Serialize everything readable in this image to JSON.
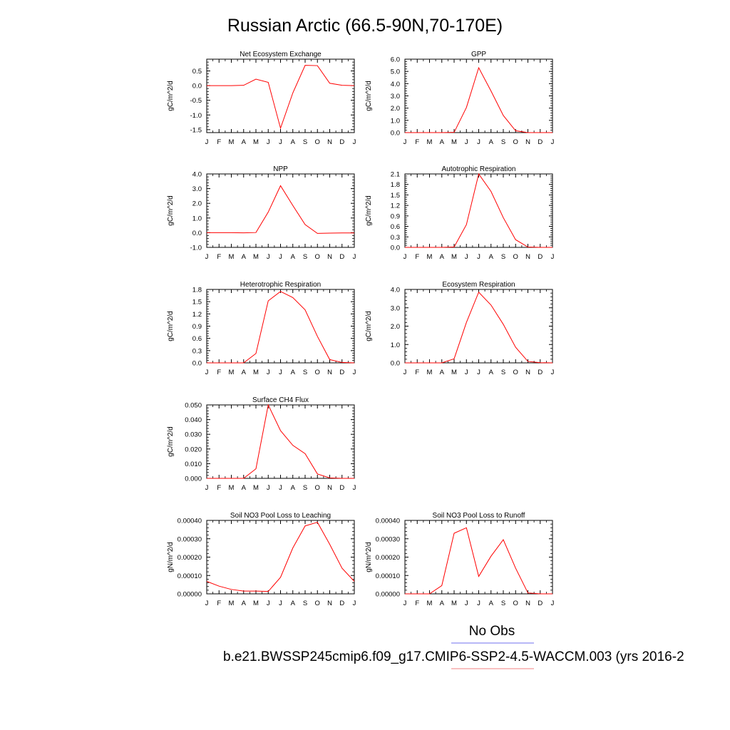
{
  "page": {
    "title": "Russian Arctic (66.5-90N,70-170E)",
    "legend_label": "No Obs",
    "case_label": "b.e21.BWSSP245cmip6.f09_g17.CMIP6-SSP2-4.5-WACCM.003 (yrs 2016-2"
  },
  "colors": {
    "series": "#ff0000",
    "obs_line": "#6f6fef",
    "case_line": "#f08080"
  },
  "chart_data": [
    {
      "type": "line",
      "title": "Net Ecosystem Exchange",
      "xlabel": "",
      "ylabel": "gC/m^2/d",
      "categories": [
        "J",
        "F",
        "M",
        "A",
        "M",
        "J",
        "J",
        "A",
        "S",
        "O",
        "N",
        "D",
        "J"
      ],
      "ylim": [
        -1.6,
        0.9
      ],
      "yticks": [
        -1.5,
        -1.0,
        -0.5,
        0.0,
        0.5
      ],
      "ytick_labels": [
        "-1.5",
        "-1.0",
        "-0.5",
        "0.0",
        "0.5"
      ],
      "values": [
        0.0,
        0.0,
        0.0,
        0.01,
        0.22,
        0.11,
        -1.45,
        -0.25,
        0.69,
        0.68,
        0.08,
        0.01,
        0.0
      ],
      "grid": false
    },
    {
      "type": "line",
      "title": "GPP",
      "xlabel": "",
      "ylabel": "gC/m^2/d",
      "categories": [
        "J",
        "F",
        "M",
        "A",
        "M",
        "J",
        "J",
        "A",
        "S",
        "O",
        "N",
        "D",
        "J"
      ],
      "ylim": [
        0,
        6
      ],
      "yticks": [
        0,
        1,
        2,
        3,
        4,
        5,
        6
      ],
      "ytick_labels": [
        "0.0",
        "1.0",
        "2.0",
        "3.0",
        "4.0",
        "5.0",
        "6.0"
      ],
      "values": [
        0.0,
        0.0,
        0.0,
        0.0,
        0.02,
        2.05,
        5.3,
        3.4,
        1.4,
        0.15,
        0.0,
        0.0,
        0.0
      ],
      "grid": false
    },
    {
      "type": "line",
      "title": "NPP",
      "xlabel": "",
      "ylabel": "gC/m^2/d",
      "categories": [
        "J",
        "F",
        "M",
        "A",
        "M",
        "J",
        "J",
        "A",
        "S",
        "O",
        "N",
        "D",
        "J"
      ],
      "ylim": [
        -1,
        4
      ],
      "yticks": [
        -1,
        0,
        1,
        2,
        3,
        4
      ],
      "ytick_labels": [
        "-1.0",
        "0.0",
        "1.0",
        "2.0",
        "3.0",
        "4.0"
      ],
      "values": [
        0.0,
        0.0,
        0.0,
        -0.01,
        0.01,
        1.4,
        3.2,
        1.85,
        0.55,
        -0.05,
        -0.03,
        -0.02,
        -0.02
      ],
      "grid": false
    },
    {
      "type": "line",
      "title": "Autotrophic Respiration",
      "xlabel": "",
      "ylabel": "gC/m^2/d",
      "categories": [
        "J",
        "F",
        "M",
        "A",
        "M",
        "J",
        "J",
        "A",
        "S",
        "O",
        "N",
        "D",
        "J"
      ],
      "ylim": [
        0,
        2.1
      ],
      "yticks": [
        0,
        0.3,
        0.6,
        0.9,
        1.2,
        1.5,
        1.8,
        2.1
      ],
      "ytick_labels": [
        "0.0",
        "0.3",
        "0.6",
        "0.9",
        "1.2",
        "1.5",
        "1.8",
        "2.1"
      ],
      "values": [
        0.0,
        0.0,
        0.0,
        0.0,
        0.01,
        0.65,
        2.1,
        1.6,
        0.85,
        0.22,
        0.01,
        0.0,
        0.0
      ],
      "grid": false
    },
    {
      "type": "line",
      "title": "Heterotrophic Respiration",
      "xlabel": "",
      "ylabel": "gC/m^2/d",
      "categories": [
        "J",
        "F",
        "M",
        "A",
        "M",
        "J",
        "J",
        "A",
        "S",
        "O",
        "N",
        "D",
        "J"
      ],
      "ylim": [
        0,
        1.8
      ],
      "yticks": [
        0,
        0.3,
        0.6,
        0.9,
        1.2,
        1.5,
        1.8
      ],
      "ytick_labels": [
        "0.0",
        "0.3",
        "0.6",
        "0.9",
        "1.2",
        "1.5",
        "1.8"
      ],
      "values": [
        0.0,
        0.0,
        0.0,
        0.0,
        0.23,
        1.52,
        1.75,
        1.6,
        1.3,
        0.65,
        0.08,
        0.01,
        0.0
      ],
      "grid": false
    },
    {
      "type": "line",
      "title": "Ecosystem Respiration",
      "xlabel": "",
      "ylabel": "gC/m^2/d",
      "categories": [
        "J",
        "F",
        "M",
        "A",
        "M",
        "J",
        "J",
        "A",
        "S",
        "O",
        "N",
        "D",
        "J"
      ],
      "ylim": [
        0,
        4
      ],
      "yticks": [
        0,
        1,
        2,
        3,
        4
      ],
      "ytick_labels": [
        "0.0",
        "1.0",
        "2.0",
        "3.0",
        "4.0"
      ],
      "values": [
        0.0,
        0.0,
        0.0,
        0.0,
        0.22,
        2.2,
        3.85,
        3.15,
        2.1,
        0.85,
        0.08,
        0.01,
        0.0
      ],
      "grid": false
    },
    {
      "type": "line",
      "title": "Surface CH4 Flux",
      "xlabel": "",
      "ylabel": "gC/m^2/d",
      "categories": [
        "J",
        "F",
        "M",
        "A",
        "M",
        "J",
        "J",
        "A",
        "S",
        "O",
        "N",
        "D",
        "J"
      ],
      "ylim": [
        0,
        0.05
      ],
      "yticks": [
        0,
        0.01,
        0.02,
        0.03,
        0.04,
        0.05
      ],
      "ytick_labels": [
        "0.000",
        "0.010",
        "0.020",
        "0.030",
        "0.040",
        "0.050"
      ],
      "values": [
        0.0,
        0.0,
        0.0,
        0.0,
        0.0065,
        0.05,
        0.0325,
        0.0225,
        0.0168,
        0.003,
        0.0003,
        0.0,
        0.0
      ],
      "grid": false
    },
    {
      "type": "line",
      "title": "Soil NO3 Pool Loss to Leaching",
      "xlabel": "",
      "ylabel": "gN/m^2/d",
      "categories": [
        "J",
        "F",
        "M",
        "A",
        "M",
        "J",
        "J",
        "A",
        "S",
        "O",
        "N",
        "D",
        "J"
      ],
      "ylim": [
        0,
        0.0004
      ],
      "yticks": [
        0,
        0.0001,
        0.0002,
        0.0003,
        0.0004
      ],
      "ytick_labels": [
        "0.00000",
        "0.00010",
        "0.00020",
        "0.00030",
        "0.00040"
      ],
      "values": [
        6.8e-05,
        4.2e-05,
        2.4e-05,
        1.5e-05,
        1.5e-05,
        1.3e-05,
        9e-05,
        0.00025,
        0.00037,
        0.00039,
        0.00027,
        0.00014,
        6.8e-05
      ],
      "grid": false
    },
    {
      "type": "line",
      "title": "Soil NO3 Pool Loss to Runoff",
      "xlabel": "",
      "ylabel": "gN/m^2/d",
      "categories": [
        "J",
        "F",
        "M",
        "A",
        "M",
        "J",
        "J",
        "A",
        "S",
        "O",
        "N",
        "D",
        "J"
      ],
      "ylim": [
        0,
        0.0004
      ],
      "yticks": [
        0,
        0.0001,
        0.0002,
        0.0003,
        0.0004
      ],
      "ytick_labels": [
        "0.00000",
        "0.00010",
        "0.00020",
        "0.00030",
        "0.00040"
      ],
      "values": [
        0.0,
        0.0,
        0.0,
        4.5e-05,
        0.00033,
        0.00036,
        9.5e-05,
        0.000205,
        0.000295,
        0.00014,
        5e-06,
        0.0,
        0.0
      ],
      "grid": false
    }
  ]
}
